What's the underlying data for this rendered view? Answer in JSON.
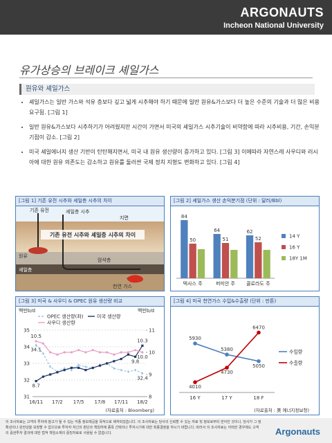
{
  "header": {
    "brand": "ARGONAUTS",
    "university": "Incheon National University"
  },
  "title": "유가상승의 브레이크 셰일가스",
  "section": "원유와 셰일가스",
  "bullets": [
    "셰일가스는 일반 가스와 석유 층보다 깊고 넓게 시추해야 하기 때문에 일반 원유&가스보다 더 높은 수준의 기술과 더 많은 비용 요구됨. [그림 1]",
    "일반 원유&가스보다 시추하기가 어려웠지만 시간이 가면서 미국의 셰일가스 시추기술이 비약함에 따라 시추비용, 기간, 손익분기점이 감소. [그림 2]",
    "미국 셰일에너지 생산 기반이 탄탄해지면서, 미국 내 원유 생산량이 증가하고 있다. [그림 3] 이에따라 자연스레 사우디와 러시아에 대한 원유 의존도는 감소하고 원유를 둘러싼 국제 정치 지형도 변화하고 있다. [그림 4]"
  ],
  "diagram": {
    "title": "[그림 1] 기존 유전 시추와 셰일층 시추의 차이",
    "labels": [
      "기존 유전",
      "셰일층 시추",
      "지면",
      "기존 유전 시추와 셰일층 시추의 차이",
      "원유",
      "셰일층",
      "암석층",
      "천연 가스"
    ]
  },
  "chart_data": [
    {
      "type": "bar",
      "title": "[그림 2] 셰일가스 생산 손익분기점 (단위 : 달러/Bbl)",
      "categories": [
        "텍사스 주",
        "퍼미안 주",
        "콜로라도 주"
      ],
      "series": [
        {
          "name": "14 Y",
          "color": "#4f81bd",
          "values": [
            84,
            64,
            62
          ],
          "data_labels": true
        },
        {
          "name": "16 Y",
          "color": "#c0504d",
          "values": [
            50,
            51,
            52
          ],
          "data_labels": true
        },
        {
          "name": "18Y 1M",
          "color": "#9bbb59",
          "values": [
            42,
            41,
            41
          ],
          "data_labels": false
        }
      ],
      "ylim": [
        0,
        90
      ],
      "legend": "right"
    },
    {
      "type": "line",
      "title": "[그림 3] 미국 & 사우디 & OPEC 원유 생산량 비교",
      "y_label": "백만b/d",
      "y2_label": "백만b/d",
      "categories": [
        "16/11",
        null,
        null,
        "17/2",
        null,
        null,
        "17/5",
        null,
        null,
        "17/8",
        null,
        null,
        "17/11",
        null,
        null,
        "18/2"
      ],
      "series": [
        {
          "name": "OPEC 생산량(좌)",
          "color": "#9dc3e6",
          "dash": true,
          "marker": "diamond",
          "values": [
            34.1,
            33.6,
            32.8,
            32.5,
            32.7,
            32.6,
            32.9,
            32.8,
            32.7,
            32.9,
            33.0,
            32.7,
            32.6,
            32.5,
            32.6,
            32.4
          ],
          "value_labels": [
            "34.1",
            null,
            null,
            null,
            null,
            null,
            null,
            null,
            null,
            null,
            null,
            null,
            null,
            null,
            null,
            "32.4"
          ]
        },
        {
          "name": "미국 생산량",
          "color": "#1f3864",
          "marker": "square",
          "axis": "y2",
          "values": [
            8.7,
            8.9,
            9.0,
            9.1,
            9.2,
            9.3,
            9.3,
            9.2,
            9.3,
            9.4,
            9.5,
            9.6,
            9.7,
            9.9,
            9.8,
            10.3
          ],
          "value_labels": [
            "8.7",
            null,
            null,
            null,
            null,
            null,
            null,
            null,
            null,
            null,
            null,
            null,
            null,
            null,
            "9.8",
            "10.3"
          ]
        },
        {
          "name": "사우디 생산량",
          "color": "#e6a0c4",
          "marker": "circle",
          "axis": "y2",
          "values": [
            10.5,
            10.4,
            10.0,
            9.9,
            10.0,
            10.0,
            10.1,
            10.0,
            10.1,
            10.0,
            10.0,
            9.9,
            10.0,
            10.0,
            10.1,
            10.0
          ],
          "value_labels": [
            "10.5",
            null,
            null,
            null,
            null,
            null,
            null,
            null,
            null,
            null,
            null,
            null,
            null,
            null,
            null,
            "10.0"
          ]
        }
      ],
      "ylim": [
        31,
        35
      ],
      "yticks": [
        31,
        32,
        33,
        34,
        35
      ],
      "y2lim": [
        8,
        11
      ],
      "y2ticks": [
        8,
        9,
        10,
        11
      ],
      "grid": true,
      "legend": "top",
      "source": "(자료출처 : Bloomberg)"
    },
    {
      "type": "line",
      "title": "[그림 4] 미국 천연가스 수입&수출량 (단위 : 만톤)",
      "categories": [
        "16 Y",
        "17 Y",
        "18 F"
      ],
      "series": [
        {
          "name": "수입량",
          "color": "#4f81bd",
          "marker": "circle",
          "values": [
            5930,
            5380,
            5050
          ],
          "data_labels": true
        },
        {
          "name": "수출량",
          "color": "#c00000",
          "marker": "circle",
          "values": [
            4010,
            4730,
            6470
          ],
          "data_labels": true
        }
      ],
      "ylim": [
        3500,
        7000
      ],
      "legend": "right",
      "source": "(자료출처 : 美 에너지정보청)"
    }
  ],
  "footer": {
    "disclaimer": "이 조사자료는 고객의 투자에 참고가 될 수 있는 각종 정보제공을 목적으로 제작되었습니다. 이 조사자료는 당사의 신뢰할 수 있는 자료 및 정보로부터 얻어진 것이나, 당사가 그 정확성이나 완전성을 보장할 수 없으므로 투자자 자신의 판단과 책임하에 종목 선택이나 투자시기에 대한 최종결정을 하시기 바랍니다. 따라서 이 조사자료는 어떠한 경우에도 고객의 증권투자 결과에 대한 법적 책임소재의 증빙자료로 사용될 수 없습니다.",
    "logo": "Argonauts"
  }
}
